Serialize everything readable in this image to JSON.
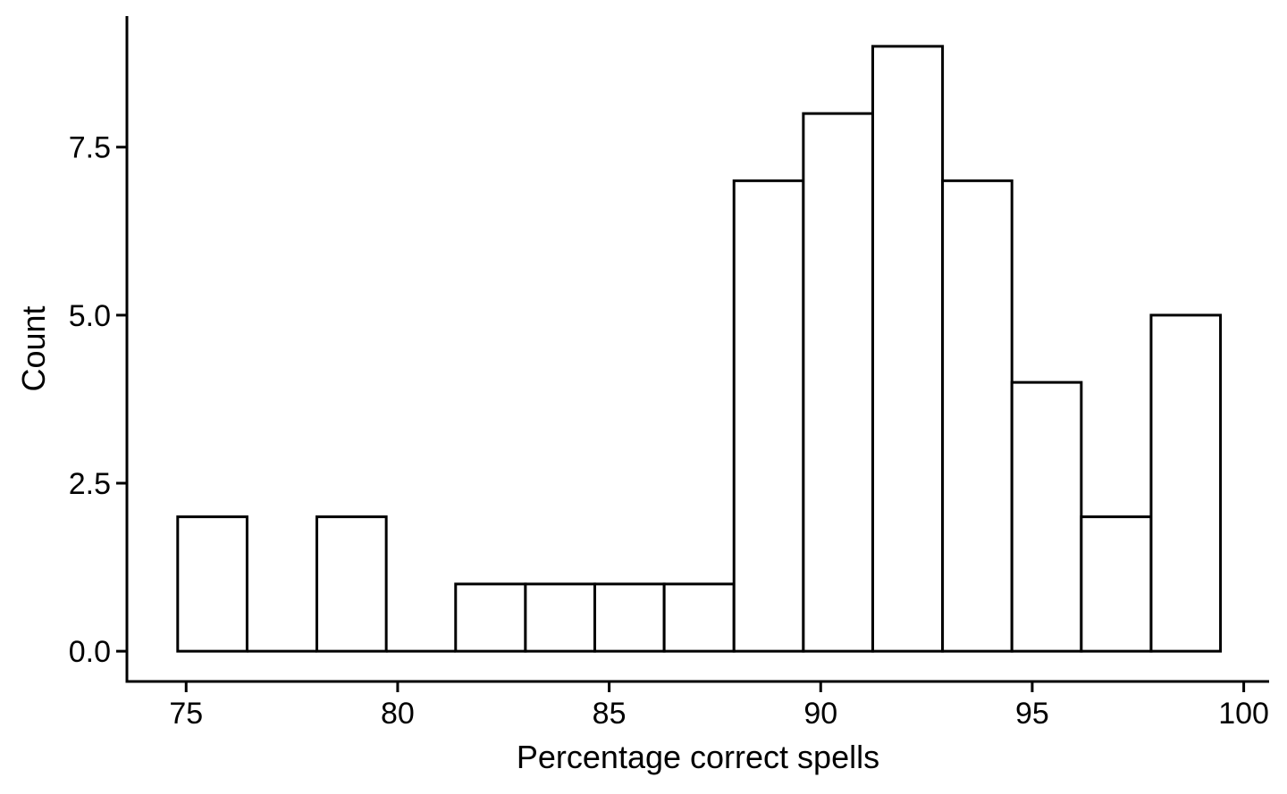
{
  "chart_data": {
    "type": "bar",
    "title": "",
    "xlabel": "Percentage correct spells",
    "ylabel": "Count",
    "xlim": [
      73.6,
      100.6
    ],
    "ylim": [
      -0.45,
      9.45
    ],
    "x_ticks": [
      {
        "value": 75,
        "label": "75"
      },
      {
        "value": 80,
        "label": "80"
      },
      {
        "value": 85,
        "label": "85"
      },
      {
        "value": 90,
        "label": "90"
      },
      {
        "value": 95,
        "label": "95"
      },
      {
        "value": 100,
        "label": "100"
      }
    ],
    "y_ticks": [
      {
        "value": 0,
        "label": "0.0"
      },
      {
        "value": 2.5,
        "label": "2.5"
      },
      {
        "value": 5,
        "label": "5.0"
      },
      {
        "value": 7.5,
        "label": "7.5"
      }
    ],
    "bin_edges": [
      74.8,
      76.44,
      78.09,
      79.73,
      81.37,
      83.02,
      84.66,
      86.3,
      87.95,
      89.59,
      91.23,
      92.88,
      94.52,
      96.16,
      97.81,
      99.45
    ],
    "values": [
      2,
      0,
      2,
      0,
      1,
      1,
      1,
      1,
      7,
      8,
      9,
      7,
      4,
      2,
      5
    ],
    "grid": false,
    "fill_color": "#ffffff",
    "outline_color": "#000000"
  }
}
